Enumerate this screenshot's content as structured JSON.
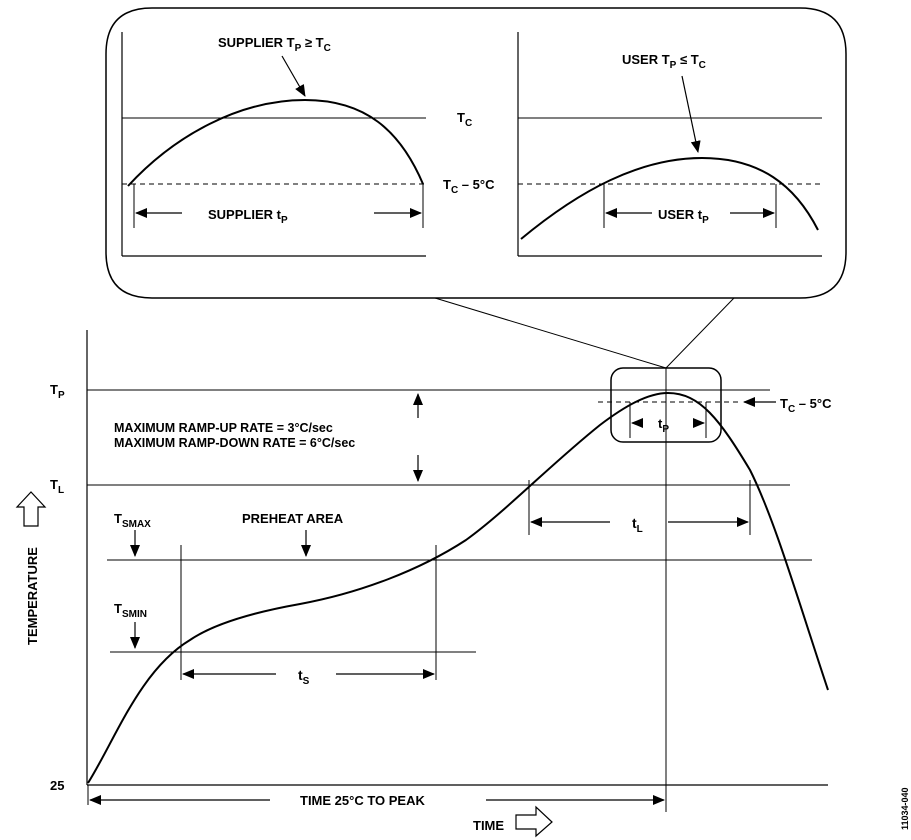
{
  "inset": {
    "supplier": {
      "title_main": "SUPPLIER T",
      "title_sub_p": "P",
      "title_mid": " ≥ T",
      "title_sub_c": "C",
      "tp_label_main": "SUPPLIER t",
      "tp_label_sub": "P"
    },
    "user": {
      "title_main": "USER T",
      "title_sub_p": "P",
      "title_mid": " ≤ T",
      "title_sub_c": "C",
      "tp_label_main": "USER t",
      "tp_label_sub": "P"
    },
    "tc_main": "T",
    "tc_sub": "C",
    "tc5_main": "T",
    "tc5_sub": "C",
    "tc5_suffix": " – 5°C"
  },
  "main": {
    "tp_main": "T",
    "tp_sub": "P",
    "tl_main": "T",
    "tl_sub": "L",
    "tsmax_main": "T",
    "tsmax_sub": "SMAX",
    "tsmin_main": "T",
    "tsmin_sub": "SMIN",
    "y_origin": "25",
    "ramp_up": "MAXIMUM RAMP-UP RATE = 3°C/sec",
    "ramp_down": "MAXIMUM RAMP-DOWN RATE = 6°C/sec",
    "preheat": "PREHEAT AREA",
    "ts_main": "t",
    "ts_sub": "S",
    "tl_dur_main": "t",
    "tl_dur_sub": "L",
    "tp_dur_main": "t",
    "tp_dur_sub": "P",
    "tc5_main": "T",
    "tc5_sub": "C",
    "tc5_suffix": " – 5°C",
    "time_to_peak": "TIME 25°C TO PEAK",
    "x_axis_label": "TIME",
    "y_axis_label": "TEMPERATURE"
  },
  "figure_id": "11034-040"
}
